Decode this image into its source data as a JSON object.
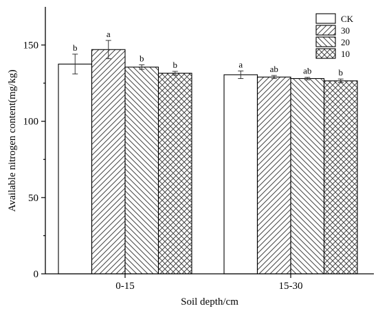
{
  "chart_data": {
    "type": "bar",
    "xlabel": "Soil depth/cm",
    "ylabel": "Available nitrogen content(mg/kg)",
    "categories": [
      "0-15",
      "15-30"
    ],
    "ylim": [
      0,
      175
    ],
    "yticks": [
      0,
      50,
      100,
      150
    ],
    "grid": false,
    "legend_position": "top-right",
    "series": [
      {
        "name": "CK",
        "pattern": "none",
        "values": [
          137.5,
          130.5
        ],
        "errors": [
          6.5,
          2.5
        ],
        "letters": [
          "b",
          "a"
        ]
      },
      {
        "name": "30",
        "pattern": "diag-up",
        "values": [
          147.0,
          129.0
        ],
        "errors": [
          6.0,
          1.0
        ],
        "letters": [
          "a",
          "ab"
        ]
      },
      {
        "name": "20",
        "pattern": "diag-down",
        "values": [
          135.5,
          128.0
        ],
        "errors": [
          1.5,
          0.8
        ],
        "letters": [
          "b",
          "ab"
        ]
      },
      {
        "name": "10",
        "pattern": "crosshatch",
        "values": [
          131.5,
          126.5
        ],
        "errors": [
          1.2,
          1.2
        ],
        "letters": [
          "b",
          "b"
        ]
      }
    ],
    "colors": {
      "bar_fill": "#ffffff",
      "stroke": "#000000",
      "hatch": "#444444"
    }
  }
}
